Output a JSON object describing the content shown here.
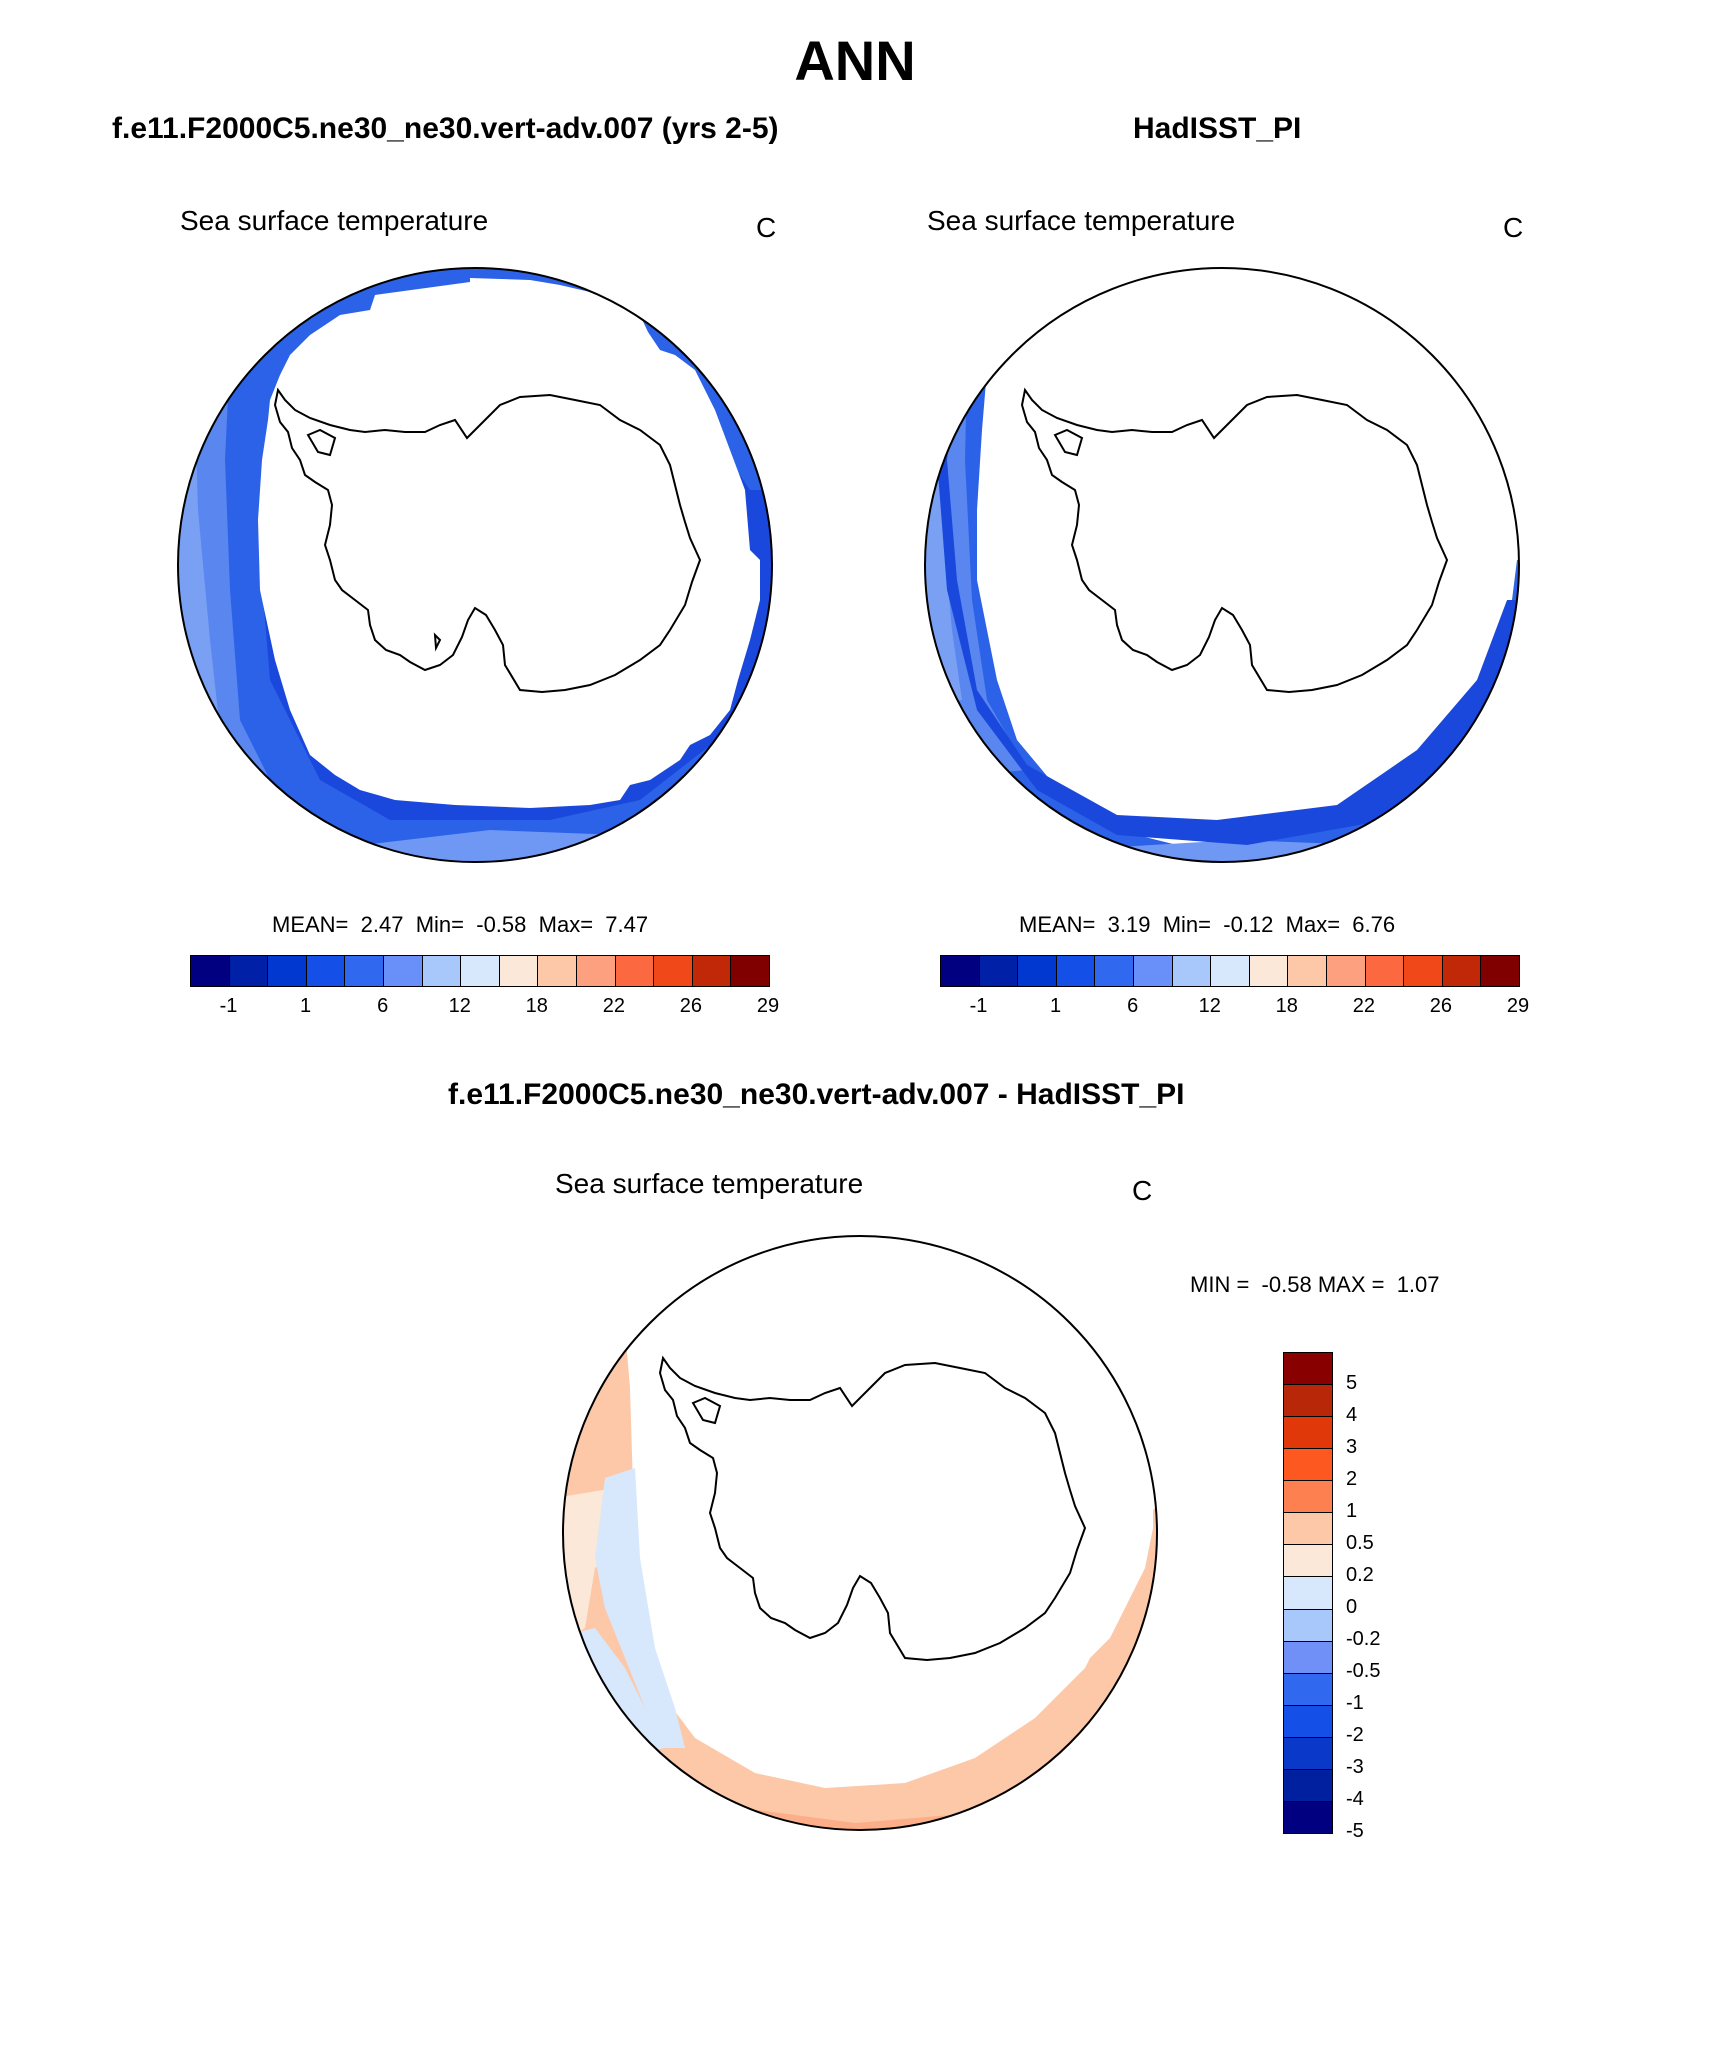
{
  "figure": {
    "season": "ANN",
    "panels": [
      {
        "case_title": "f.e11.F2000C5.ne30_ne30.vert-adv.007 (yrs 2-5)",
        "variable": "Sea surface temperature",
        "units": "C",
        "stats": {
          "mean_label": "MEAN=",
          "mean": "2.47",
          "min_label": "Min=",
          "min": "-0.58",
          "max_label": "Max=",
          "max": "7.47"
        }
      },
      {
        "case_title": "HadISST_PI",
        "variable": "Sea surface temperature",
        "units": "C",
        "stats": {
          "mean_label": "MEAN=",
          "mean": "3.19",
          "min_label": "Min=",
          "min": "-0.12",
          "max_label": "Max=",
          "max": "6.76"
        }
      },
      {
        "case_title": "f.e11.F2000C5.ne30_ne30.vert-adv.007 - HadISST_PI",
        "variable": "Sea surface temperature",
        "units": "C",
        "stats": {
          "min_label": "MIN =",
          "min": "-0.58",
          "max_label": "MAX =",
          "max": "1.07"
        }
      }
    ],
    "horizontal_colorbar": {
      "colors": [
        "#000080",
        "#0020a8",
        "#0038d0",
        "#1450e8",
        "#3068f0",
        "#6890f8",
        "#a8c8fc",
        "#d8e8fc",
        "#fce8d8",
        "#fcc8a8",
        "#fca080",
        "#fc6840",
        "#f04818",
        "#c02808",
        "#800000"
      ],
      "labels": [
        "-1",
        "1",
        "6",
        "12",
        "18",
        "22",
        "26",
        "29"
      ]
    },
    "diff_colorbar": {
      "colors_top_to_bottom": [
        "#880000",
        "#b82808",
        "#e03808",
        "#fc5820",
        "#fc8050",
        "#fcc8a8",
        "#fce8d8",
        "#d8e8fc",
        "#a8c8fc",
        "#7090f8",
        "#3068f0",
        "#1450e8",
        "#0a38c8",
        "#0020a0",
        "#000080"
      ],
      "labels_top_to_bottom": [
        "5",
        "4",
        "3",
        "2",
        "1",
        "0.5",
        "0.2",
        "0",
        "-0.2",
        "-0.5",
        "-1",
        "-2",
        "-3",
        "-4",
        "-5"
      ]
    }
  }
}
